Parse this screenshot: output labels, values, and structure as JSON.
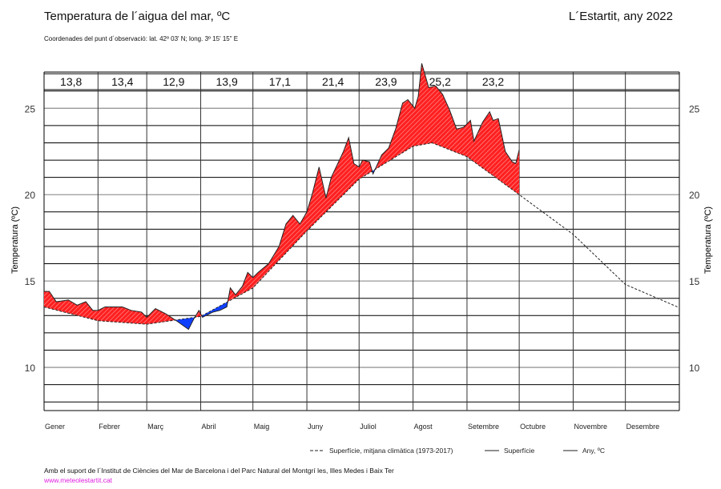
{
  "header": {
    "title": "Temperatura de l´aigua del mar, ºC",
    "place": "L´Estartit, any 2022",
    "coords": "Coordenades del punt d´observació: lat. 42º 03' N; long. 3º 15' 15\" E"
  },
  "footer": {
    "support": "Amb el suport de l´Institut de Ciències del Mar de Barcelona i del Parc Natural del Montgrí les, Illes Medes i Baix Ter",
    "link": "www.meteolestartit.cat"
  },
  "colors": {
    "above": "#ff2020",
    "below": "#1040ff",
    "line": "#222222",
    "grid_major": "#999999",
    "grid_minor": "#000000",
    "link": "#e020e0"
  },
  "chart_data": {
    "type": "line",
    "title": "Temperatura de l´aigua del mar, ºC",
    "ylabel": "Temperatura (ºC)",
    "ylim": [
      7.5,
      27.1
    ],
    "yticks": [
      10,
      15,
      20,
      25
    ],
    "grid": true,
    "legend_placement": "bottom-right",
    "legend": [
      "Superfície, mitjana climàtica (1973-2017)",
      "Superfície",
      "Any,  ºC"
    ],
    "months": [
      "Gener",
      "Febrer",
      "Març",
      "Abril",
      "Maig",
      "Juny",
      "Juliol",
      "Agost",
      "Setembre",
      "Octubre",
      "Novembre",
      "Desembre"
    ],
    "monthly_means": [
      "13,8",
      "13,4",
      "12,9",
      "13,9",
      "17,1",
      "21,4",
      "23,9",
      "25,2",
      "23,2",
      "",
      "",
      ""
    ],
    "series": [
      {
        "name": "Superfície, mitjana climàtica (1973-2017)",
        "style": "dashed",
        "x": [
          "2022-01-01",
          "2022-02-01",
          "2022-03-01",
          "2022-04-01",
          "2022-05-01",
          "2022-06-01",
          "2022-07-01",
          "2022-08-01",
          "2022-08-12",
          "2022-09-01",
          "2022-10-01",
          "2022-11-01",
          "2022-12-01",
          "2022-12-31"
        ],
        "y": [
          13.5,
          12.7,
          12.5,
          12.95,
          14.6,
          17.9,
          20.9,
          22.8,
          23.0,
          22.2,
          20.0,
          17.7,
          14.8,
          13.5
        ]
      },
      {
        "name": "Superfície",
        "style": "solid",
        "x": [
          "2022-01-01",
          "2022-01-04",
          "2022-01-08",
          "2022-01-15",
          "2022-01-20",
          "2022-01-25",
          "2022-01-29",
          "2022-02-01",
          "2022-02-05",
          "2022-02-15",
          "2022-02-20",
          "2022-02-26",
          "2022-03-01",
          "2022-03-06",
          "2022-03-12",
          "2022-03-18",
          "2022-03-25",
          "2022-03-28",
          "2022-03-31",
          "2022-04-02",
          "2022-04-08",
          "2022-04-12",
          "2022-04-16",
          "2022-04-18",
          "2022-04-21",
          "2022-04-25",
          "2022-04-28",
          "2022-05-01",
          "2022-05-04",
          "2022-05-10",
          "2022-05-16",
          "2022-05-20",
          "2022-05-24",
          "2022-05-28",
          "2022-06-01",
          "2022-06-04",
          "2022-06-08",
          "2022-06-12",
          "2022-06-15",
          "2022-06-22",
          "2022-06-25",
          "2022-06-28",
          "2022-07-01",
          "2022-07-03",
          "2022-07-07",
          "2022-07-09",
          "2022-07-14",
          "2022-07-18",
          "2022-07-22",
          "2022-07-26",
          "2022-07-29",
          "2022-08-02",
          "2022-08-04",
          "2022-08-06",
          "2022-08-10",
          "2022-08-14",
          "2022-08-18",
          "2022-08-22",
          "2022-08-26",
          "2022-08-30",
          "2022-09-03",
          "2022-09-05",
          "2022-09-10",
          "2022-09-14",
          "2022-09-16",
          "2022-09-19",
          "2022-09-23",
          "2022-09-27",
          "2022-09-29",
          "2022-10-01"
        ],
        "y": [
          14.4,
          14.4,
          13.8,
          13.9,
          13.6,
          13.8,
          13.3,
          13.3,
          13.5,
          13.5,
          13.3,
          13.2,
          12.9,
          13.4,
          13.1,
          12.7,
          12.2,
          12.8,
          13.3,
          12.9,
          13.2,
          13.3,
          13.5,
          14.6,
          14.2,
          14.7,
          15.5,
          15.2,
          15.5,
          16.0,
          17.0,
          18.3,
          18.8,
          18.3,
          19.0,
          20.0,
          21.6,
          19.8,
          21.0,
          22.5,
          23.3,
          21.8,
          21.6,
          22.0,
          21.9,
          21.2,
          22.3,
          22.7,
          23.8,
          25.3,
          25.5,
          25.0,
          25.7,
          27.6,
          26.2,
          26.3,
          25.8,
          24.9,
          23.8,
          23.9,
          24.3,
          23.1,
          24.2,
          24.8,
          24.3,
          24.4,
          22.5,
          21.9,
          21.8,
          22.6
        ]
      }
    ]
  }
}
